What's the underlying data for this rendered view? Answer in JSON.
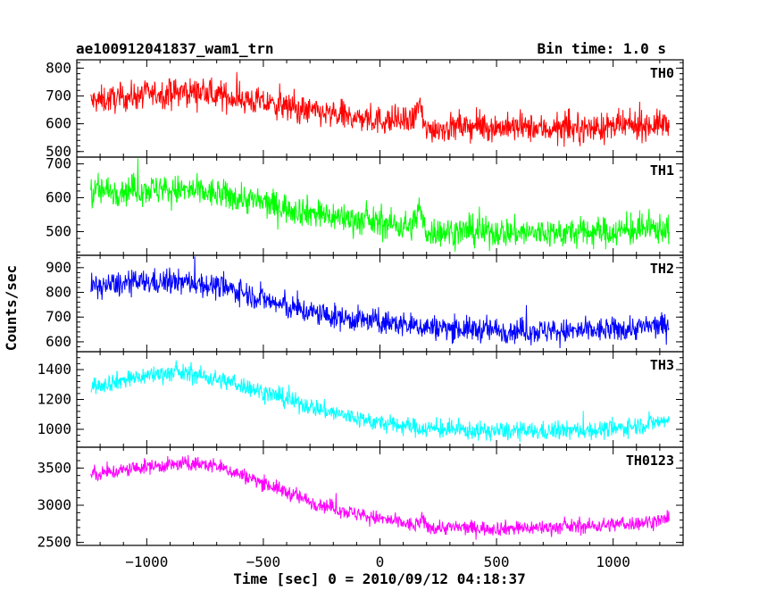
{
  "header": {
    "title": "ae100912041837_wam1_trn",
    "bin_time": "Bin time: 1.0 s"
  },
  "chart_data": {
    "type": "line",
    "xlabel": "Time [sec] 0 = 2010/09/12 04:18:37",
    "ylabel": "Counts/sec",
    "xlim": [
      -1300,
      1300
    ],
    "x_ticks": [
      -1000,
      -500,
      0,
      500,
      1000
    ],
    "x_tick_labels": [
      "−1000",
      "−500",
      "0",
      "500",
      "1000"
    ],
    "x_range": [
      -1240,
      1240
    ],
    "grid": false,
    "panels": [
      {
        "name": "TH0",
        "color": "#ff0000",
        "ylim": [
          480,
          830
        ],
        "y_ticks": [
          500,
          600,
          700,
          800
        ],
        "trend_x": [
          -1240,
          -1000,
          -800,
          -600,
          -400,
          -200,
          0,
          140,
          170,
          190,
          260,
          400,
          600,
          800,
          1000,
          1240
        ],
        "trend_y": [
          680,
          705,
          715,
          690,
          660,
          630,
          612,
          608,
          680,
          580,
          585,
          590,
          585,
          580,
          588,
          600
        ],
        "noise": 45
      },
      {
        "name": "TH1",
        "color": "#00ff00",
        "ylim": [
          430,
          720
        ],
        "y_ticks": [
          500,
          600,
          700
        ],
        "trend_x": [
          -1240,
          -1000,
          -800,
          -600,
          -400,
          -200,
          0,
          140,
          170,
          190,
          260,
          400,
          600,
          800,
          1000,
          1240
        ],
        "trend_y": [
          618,
          625,
          620,
          600,
          570,
          545,
          525,
          515,
          575,
          500,
          500,
          500,
          497,
          495,
          500,
          510
        ],
        "noise": 40
      },
      {
        "name": "TH2",
        "color": "#0000ff",
        "ylim": [
          560,
          950
        ],
        "y_ticks": [
          600,
          700,
          800,
          900
        ],
        "trend_x": [
          -1240,
          -1000,
          -800,
          -600,
          -400,
          -200,
          0,
          200,
          400,
          600,
          800,
          1000,
          1240
        ],
        "trend_y": [
          822,
          842,
          840,
          805,
          740,
          700,
          680,
          660,
          650,
          645,
          642,
          648,
          668
        ],
        "noise": 45
      },
      {
        "name": "TH3",
        "color": "#00ffff",
        "ylim": [
          880,
          1520
        ],
        "y_ticks": [
          1000,
          1200,
          1400
        ],
        "trend_x": [
          -1240,
          -1000,
          -900,
          -800,
          -600,
          -400,
          -200,
          0,
          200,
          400,
          600,
          800,
          1000,
          1240
        ],
        "trend_y": [
          1290,
          1360,
          1380,
          1370,
          1300,
          1200,
          1110,
          1040,
          1005,
          990,
          985,
          990,
          1000,
          1060
        ],
        "noise": 55
      },
      {
        "name": "TH0123",
        "color": "#ff00ff",
        "ylim": [
          2460,
          3780
        ],
        "y_ticks": [
          2500,
          3000,
          3500
        ],
        "trend_x": [
          -1240,
          -1000,
          -800,
          -700,
          -500,
          -300,
          -100,
          100,
          150,
          180,
          210,
          300,
          500,
          700,
          900,
          1100,
          1240
        ],
        "trend_y": [
          3400,
          3520,
          3560,
          3530,
          3300,
          3050,
          2880,
          2760,
          2720,
          2800,
          2700,
          2700,
          2690,
          2700,
          2720,
          2760,
          2810
        ],
        "noise": 90
      }
    ]
  }
}
